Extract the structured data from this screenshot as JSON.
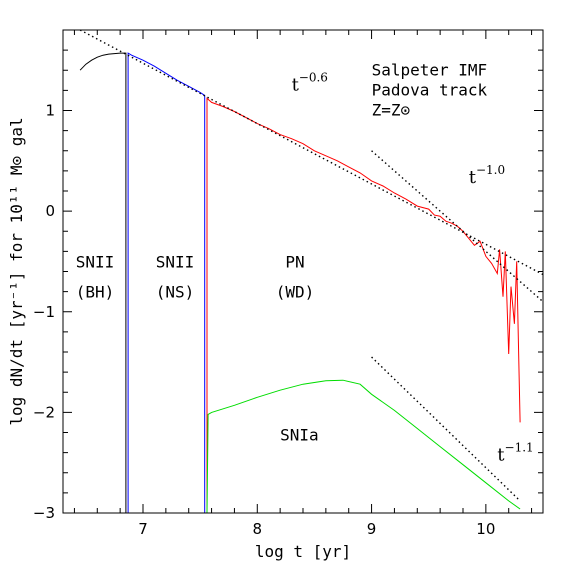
{
  "chart_data": {
    "type": "line",
    "title": "",
    "xlabel": "log t [yr]",
    "ylabel": "log dN/dt [yr⁻¹] for 10¹¹ M⊙ gal",
    "xlim": [
      6.3,
      10.5
    ],
    "ylim": [
      -3,
      1.8
    ],
    "x_ticks": [
      "7",
      "8",
      "9",
      "10"
    ],
    "y_ticks": [
      "−3",
      "−2",
      "−1",
      "0",
      "1"
    ],
    "grid": false,
    "legend": "none",
    "info_text": [
      "Salpeter IMF",
      "Padova track",
      "Z=Z⊙"
    ],
    "region_labels": [
      {
        "top": "SNII",
        "bottom": "(BH)"
      },
      {
        "top": "SNII",
        "bottom": "(NS)"
      },
      {
        "top": "PN",
        "bottom": "(WD)"
      }
    ],
    "snia_label": "SNIa",
    "power_laws": [
      {
        "base": "t",
        "exponent": "−0.6",
        "slope": -0.6,
        "x": [
          6.45,
          10.5
        ],
        "y": [
          1.8,
          -0.63
        ],
        "label_x": 8.3,
        "label_y": 1.2
      },
      {
        "base": "t",
        "exponent": "−1.0",
        "slope": -1.0,
        "x": [
          9.0,
          10.5
        ],
        "y": [
          0.6,
          -0.9
        ],
        "label_x": 9.85,
        "label_y": 0.28
      },
      {
        "base": "t",
        "exponent": "−1.1",
        "slope": -1.1,
        "x": [
          9.0,
          10.3
        ],
        "y": [
          -1.45,
          -2.88
        ],
        "label_x": 10.1,
        "label_y": -2.48
      }
    ],
    "series": [
      {
        "name": "SNII (BH)",
        "color": "#000000",
        "x": [
          6.45,
          6.5,
          6.55,
          6.6,
          6.65,
          6.7,
          6.75,
          6.8,
          6.84,
          6.85,
          6.85
        ],
        "y": [
          1.4,
          1.46,
          1.5,
          1.53,
          1.55,
          1.56,
          1.565,
          1.57,
          1.57,
          1.57,
          -3.0
        ]
      },
      {
        "name": "SNII (NS)",
        "color": "#0000ff",
        "x": [
          6.87,
          6.87,
          6.9,
          7.0,
          7.1,
          7.2,
          7.3,
          7.4,
          7.5,
          7.54,
          7.54
        ],
        "y": [
          -3.0,
          1.57,
          1.55,
          1.5,
          1.44,
          1.37,
          1.3,
          1.24,
          1.18,
          1.15,
          -3.0
        ]
      },
      {
        "name": "PN (WD)",
        "color": "#ff0000",
        "x": [
          7.56,
          7.56,
          7.6,
          7.7,
          7.8,
          7.9,
          8.0,
          8.1,
          8.2,
          8.3,
          8.4,
          8.5,
          8.6,
          8.7,
          8.8,
          8.9,
          9.0,
          9.1,
          9.2,
          9.3,
          9.4,
          9.5,
          9.55,
          9.6,
          9.65,
          9.7,
          9.75,
          9.8,
          9.85,
          9.9,
          9.95,
          10.0,
          10.05,
          10.1,
          10.12,
          10.15,
          10.17,
          10.2,
          10.22,
          10.25,
          10.27,
          10.3
        ],
        "y": [
          -3.0,
          1.12,
          1.08,
          1.04,
          0.99,
          0.93,
          0.87,
          0.82,
          0.76,
          0.72,
          0.67,
          0.6,
          0.55,
          0.5,
          0.44,
          0.38,
          0.3,
          0.25,
          0.18,
          0.12,
          0.05,
          0.02,
          -0.04,
          -0.05,
          -0.1,
          -0.12,
          -0.15,
          -0.2,
          -0.27,
          -0.34,
          -0.3,
          -0.45,
          -0.52,
          -0.62,
          -0.38,
          -0.85,
          -0.4,
          -1.42,
          -0.75,
          -1.12,
          -0.5,
          -2.1
        ]
      },
      {
        "name": "SNIa",
        "color": "#00dd00",
        "x": [
          7.56,
          7.57,
          7.6,
          7.8,
          8.0,
          8.2,
          8.4,
          8.6,
          8.75,
          8.9,
          9.0,
          9.2,
          9.4,
          9.6,
          9.8,
          10.0,
          10.2,
          10.3
        ],
        "y": [
          -3.0,
          -2.02,
          -2.0,
          -1.93,
          -1.85,
          -1.78,
          -1.72,
          -1.685,
          -1.68,
          -1.72,
          -1.82,
          -1.98,
          -2.16,
          -2.34,
          -2.52,
          -2.7,
          -2.88,
          -2.96
        ]
      }
    ]
  }
}
